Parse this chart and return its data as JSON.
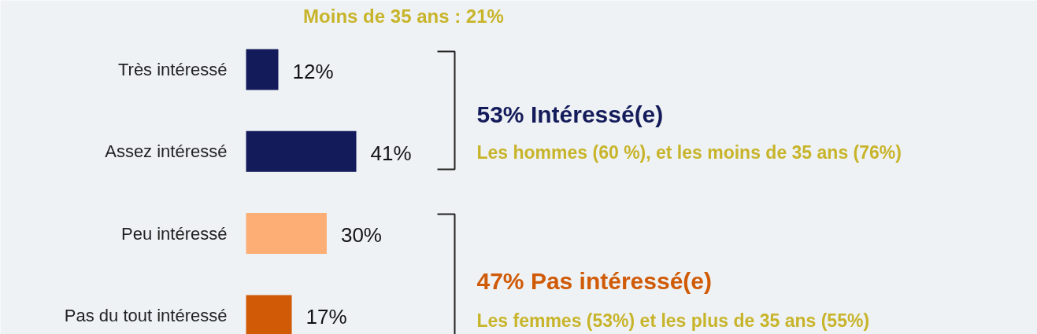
{
  "chart_data": {
    "type": "bar",
    "orientation": "horizontal",
    "categories": [
      "Très intéressé",
      "Assez intéressé",
      "Peu intéressé",
      "Pas du tout intéressé"
    ],
    "values": [
      12,
      41,
      30,
      17
    ],
    "colors": [
      "#141b5a",
      "#141b5a",
      "#fdae74",
      "#d05a06"
    ],
    "value_labels": [
      "12%",
      "41%",
      "30%",
      "17%"
    ],
    "annotations": [
      "Moins de 35 ans : 21%",
      "53% Intéressé(e)",
      "Les hommes (60 %), et les moins de 35 ans (76%)",
      "47% Pas intéressé(e)",
      "Les femmes (53%) et les plus de 35 ans (55%)"
    ]
  }
}
